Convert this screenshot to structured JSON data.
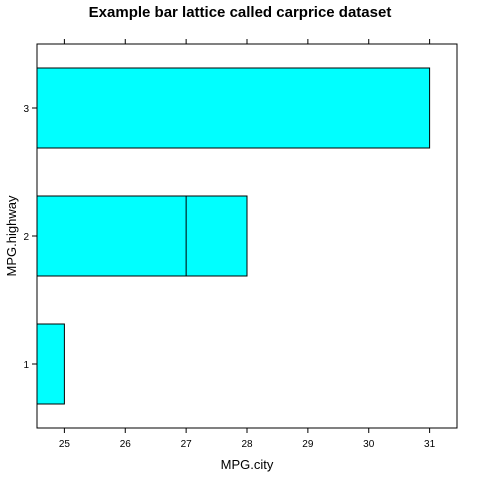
{
  "chart_data": {
    "type": "bar",
    "orientation": "horizontal",
    "title": "Example bar lattice called carprice dataset",
    "xlabel": "MPG.city",
    "ylabel": "MPG.highway",
    "categories": [
      "1",
      "2",
      "3"
    ],
    "values": [
      25,
      28,
      31
    ],
    "overlay_values": [
      null,
      27,
      null
    ],
    "xlim": [
      24.55,
      31.45
    ],
    "xticks": [
      25,
      26,
      27,
      28,
      29,
      30,
      31
    ],
    "bar_color": "#00ffff",
    "border_color": "#000000",
    "grid": false,
    "legend": "none"
  }
}
